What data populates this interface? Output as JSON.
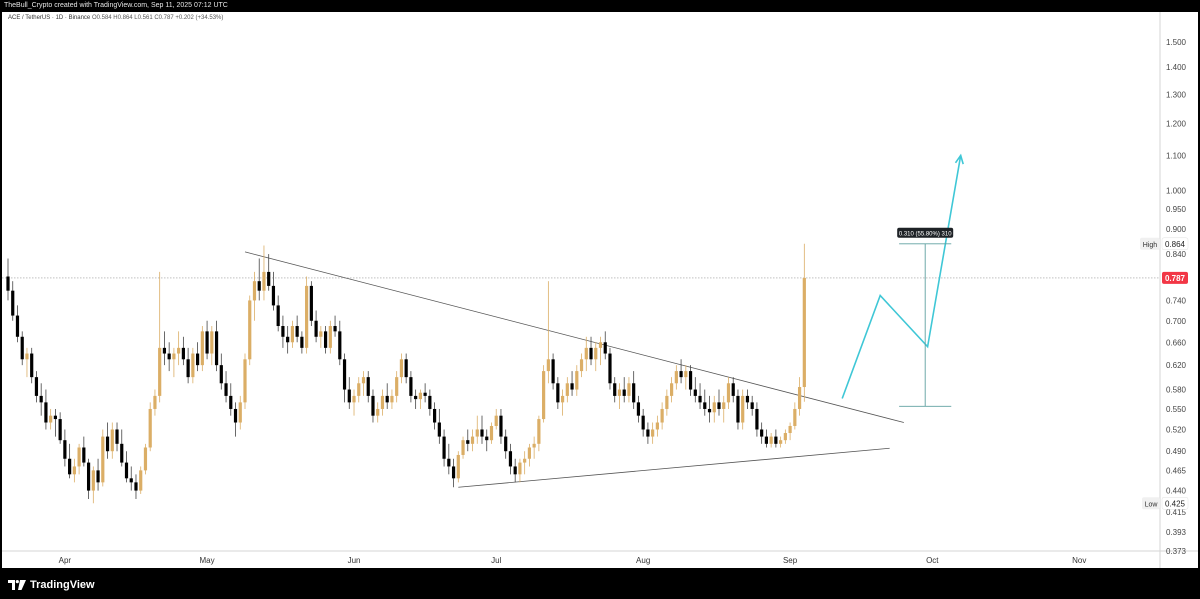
{
  "header": {
    "attribution": "TheBull_Crypto created with TradingView.com, Sep 11, 2025 07:12 UTC"
  },
  "symbol": {
    "pair": "ACE / TetherUS · 1D · Binance",
    "ohlc": "O0.584  H0.864  L0.561  C0.787  +0.202 (+34.53%)"
  },
  "footer": {
    "brand": "TradingView"
  },
  "colors": {
    "up": "#dbae66",
    "down": "#000000",
    "projection": "#3fc7d6",
    "measure": "#5fa0a0",
    "price_badge": "#f23645",
    "trendline": "#555555"
  },
  "chart_data": {
    "type": "candlestick",
    "y_scale": "log",
    "ylim": [
      0.37,
      1.6
    ],
    "y_ticks": [
      0.373,
      0.393,
      0.415,
      0.44,
      0.465,
      0.49,
      0.52,
      0.55,
      0.58,
      0.62,
      0.66,
      0.7,
      0.74,
      0.84,
      0.9,
      0.95,
      1.0,
      1.1,
      1.2,
      1.3,
      1.4,
      1.5
    ],
    "y_tick_labels": [
      "0.373",
      "0.393",
      "0.415",
      "0.440",
      "0.465",
      "0.490",
      "0.520",
      "0.550",
      "0.580",
      "0.620",
      "0.660",
      "0.700",
      "0.740",
      "0.840",
      "0.900",
      "0.950",
      "1.000",
      "1.100",
      "1.200",
      "1.300",
      "1.400",
      "1.500"
    ],
    "x_labels": [
      "Apr",
      "May",
      "Jun",
      "Jul",
      "Aug",
      "Sep",
      "Oct",
      "Nov"
    ],
    "x_label_dates": [
      "2025-04-01",
      "2025-05-01",
      "2025-06-01",
      "2025-07-01",
      "2025-08-01",
      "2025-09-01",
      "2025-10-01",
      "2025-11-01"
    ],
    "last_price": 0.787,
    "last_price_label": "0.787",
    "high": 0.864,
    "high_label": "High",
    "high_value_label": "0.864",
    "low": 0.425,
    "low_label": "Low",
    "low_value_label": "0.425",
    "measure": {
      "from": 0.554,
      "to": 0.864,
      "from_date": "2025-09-24",
      "to_date": "2025-10-05",
      "label": "0.310 (55.80%) 310"
    },
    "trendline_upper": [
      {
        "date": "2025-05-09",
        "price": 0.845
      },
      {
        "date": "2025-09-25",
        "price": 0.53
      }
    ],
    "trendline_lower": [
      {
        "date": "2025-06-23",
        "price": 0.444
      },
      {
        "date": "2025-09-22",
        "price": 0.494
      }
    ],
    "projection": [
      {
        "date": "2025-09-12",
        "price": 0.566
      },
      {
        "date": "2025-09-20",
        "price": 0.75
      },
      {
        "date": "2025-09-30",
        "price": 0.652
      },
      {
        "date": "2025-10-07",
        "price": 1.1
      }
    ],
    "candles": [
      [
        "2025-03-20",
        0.79,
        0.83,
        0.74,
        0.76
      ],
      [
        "2025-03-21",
        0.76,
        0.78,
        0.7,
        0.71
      ],
      [
        "2025-03-22",
        0.71,
        0.73,
        0.66,
        0.67
      ],
      [
        "2025-03-23",
        0.67,
        0.68,
        0.62,
        0.63
      ],
      [
        "2025-03-24",
        0.63,
        0.65,
        0.6,
        0.64
      ],
      [
        "2025-03-25",
        0.64,
        0.65,
        0.59,
        0.6
      ],
      [
        "2025-03-26",
        0.6,
        0.61,
        0.56,
        0.57
      ],
      [
        "2025-03-27",
        0.57,
        0.59,
        0.54,
        0.56
      ],
      [
        "2025-03-28",
        0.56,
        0.58,
        0.52,
        0.53
      ],
      [
        "2025-03-29",
        0.53,
        0.55,
        0.52,
        0.54
      ],
      [
        "2025-03-30",
        0.54,
        0.55,
        0.51,
        0.535
      ],
      [
        "2025-03-31",
        0.535,
        0.545,
        0.5,
        0.505
      ],
      [
        "2025-04-01",
        0.505,
        0.52,
        0.47,
        0.48
      ],
      [
        "2025-04-02",
        0.48,
        0.5,
        0.455,
        0.46
      ],
      [
        "2025-04-03",
        0.46,
        0.48,
        0.45,
        0.47
      ],
      [
        "2025-04-04",
        0.47,
        0.5,
        0.46,
        0.495
      ],
      [
        "2025-04-05",
        0.495,
        0.51,
        0.47,
        0.475
      ],
      [
        "2025-04-06",
        0.475,
        0.48,
        0.43,
        0.44
      ],
      [
        "2025-04-07",
        0.44,
        0.47,
        0.425,
        0.465
      ],
      [
        "2025-04-08",
        0.465,
        0.48,
        0.44,
        0.45
      ],
      [
        "2025-04-09",
        0.45,
        0.52,
        0.445,
        0.51
      ],
      [
        "2025-04-10",
        0.51,
        0.53,
        0.48,
        0.49
      ],
      [
        "2025-04-11",
        0.49,
        0.53,
        0.48,
        0.52
      ],
      [
        "2025-04-12",
        0.52,
        0.53,
        0.49,
        0.5
      ],
      [
        "2025-04-13",
        0.5,
        0.52,
        0.47,
        0.475
      ],
      [
        "2025-04-14",
        0.475,
        0.49,
        0.45,
        0.455
      ],
      [
        "2025-04-15",
        0.455,
        0.47,
        0.44,
        0.45
      ],
      [
        "2025-04-16",
        0.45,
        0.46,
        0.43,
        0.44
      ],
      [
        "2025-04-17",
        0.44,
        0.47,
        0.436,
        0.465
      ],
      [
        "2025-04-18",
        0.465,
        0.5,
        0.46,
        0.495
      ],
      [
        "2025-04-19",
        0.495,
        0.56,
        0.49,
        0.55
      ],
      [
        "2025-04-20",
        0.55,
        0.58,
        0.54,
        0.57
      ],
      [
        "2025-04-21",
        0.57,
        0.8,
        0.56,
        0.65
      ],
      [
        "2025-04-22",
        0.65,
        0.68,
        0.62,
        0.64
      ],
      [
        "2025-04-23",
        0.64,
        0.66,
        0.61,
        0.63
      ],
      [
        "2025-04-24",
        0.63,
        0.65,
        0.6,
        0.64
      ],
      [
        "2025-04-25",
        0.64,
        0.68,
        0.62,
        0.65
      ],
      [
        "2025-04-26",
        0.65,
        0.67,
        0.62,
        0.63
      ],
      [
        "2025-04-27",
        0.63,
        0.65,
        0.59,
        0.6
      ],
      [
        "2025-04-28",
        0.6,
        0.65,
        0.59,
        0.64
      ],
      [
        "2025-04-29",
        0.64,
        0.66,
        0.61,
        0.62
      ],
      [
        "2025-04-30",
        0.62,
        0.69,
        0.61,
        0.68
      ],
      [
        "2025-05-01",
        0.68,
        0.7,
        0.63,
        0.64
      ],
      [
        "2025-05-02",
        0.64,
        0.69,
        0.62,
        0.68
      ],
      [
        "2025-05-03",
        0.68,
        0.7,
        0.61,
        0.62
      ],
      [
        "2025-05-04",
        0.62,
        0.64,
        0.58,
        0.59
      ],
      [
        "2025-05-05",
        0.59,
        0.61,
        0.56,
        0.57
      ],
      [
        "2025-05-06",
        0.57,
        0.59,
        0.54,
        0.55
      ],
      [
        "2025-05-07",
        0.55,
        0.56,
        0.51,
        0.53
      ],
      [
        "2025-05-08",
        0.53,
        0.57,
        0.52,
        0.56
      ],
      [
        "2025-05-09",
        0.56,
        0.64,
        0.55,
        0.63
      ],
      [
        "2025-05-10",
        0.63,
        0.75,
        0.62,
        0.74
      ],
      [
        "2025-05-11",
        0.74,
        0.8,
        0.7,
        0.78
      ],
      [
        "2025-05-12",
        0.78,
        0.83,
        0.74,
        0.76
      ],
      [
        "2025-05-13",
        0.76,
        0.86,
        0.74,
        0.8
      ],
      [
        "2025-05-14",
        0.8,
        0.84,
        0.76,
        0.77
      ],
      [
        "2025-05-15",
        0.77,
        0.8,
        0.72,
        0.73
      ],
      [
        "2025-05-16",
        0.73,
        0.75,
        0.68,
        0.69
      ],
      [
        "2025-05-17",
        0.69,
        0.71,
        0.65,
        0.67
      ],
      [
        "2025-05-18",
        0.67,
        0.69,
        0.64,
        0.66
      ],
      [
        "2025-05-19",
        0.66,
        0.7,
        0.65,
        0.69
      ],
      [
        "2025-05-20",
        0.69,
        0.71,
        0.66,
        0.67
      ],
      [
        "2025-05-21",
        0.67,
        0.68,
        0.64,
        0.65
      ],
      [
        "2025-05-22",
        0.65,
        0.79,
        0.64,
        0.77
      ],
      [
        "2025-05-23",
        0.77,
        0.78,
        0.69,
        0.7
      ],
      [
        "2025-05-24",
        0.7,
        0.72,
        0.66,
        0.67
      ],
      [
        "2025-05-25",
        0.67,
        0.69,
        0.65,
        0.68
      ],
      [
        "2025-05-26",
        0.68,
        0.69,
        0.64,
        0.65
      ],
      [
        "2025-05-27",
        0.65,
        0.7,
        0.64,
        0.69
      ],
      [
        "2025-05-28",
        0.69,
        0.71,
        0.67,
        0.68
      ],
      [
        "2025-05-29",
        0.68,
        0.7,
        0.62,
        0.63
      ],
      [
        "2025-05-30",
        0.63,
        0.64,
        0.56,
        0.58
      ],
      [
        "2025-05-31",
        0.58,
        0.6,
        0.55,
        0.56
      ],
      [
        "2025-06-01",
        0.56,
        0.58,
        0.54,
        0.57
      ],
      [
        "2025-06-02",
        0.57,
        0.6,
        0.56,
        0.59
      ],
      [
        "2025-06-03",
        0.59,
        0.61,
        0.57,
        0.6
      ],
      [
        "2025-06-04",
        0.6,
        0.61,
        0.56,
        0.57
      ],
      [
        "2025-06-05",
        0.57,
        0.58,
        0.53,
        0.54
      ],
      [
        "2025-06-06",
        0.54,
        0.56,
        0.53,
        0.55
      ],
      [
        "2025-06-07",
        0.55,
        0.58,
        0.54,
        0.57
      ],
      [
        "2025-06-08",
        0.57,
        0.59,
        0.55,
        0.56
      ],
      [
        "2025-06-09",
        0.56,
        0.58,
        0.55,
        0.57
      ],
      [
        "2025-06-10",
        0.57,
        0.61,
        0.56,
        0.6
      ],
      [
        "2025-06-11",
        0.6,
        0.64,
        0.59,
        0.63
      ],
      [
        "2025-06-12",
        0.63,
        0.64,
        0.59,
        0.6
      ],
      [
        "2025-06-13",
        0.6,
        0.61,
        0.56,
        0.57
      ],
      [
        "2025-06-14",
        0.57,
        0.58,
        0.55,
        0.565
      ],
      [
        "2025-06-15",
        0.565,
        0.58,
        0.55,
        0.575
      ],
      [
        "2025-06-16",
        0.575,
        0.59,
        0.56,
        0.57
      ],
      [
        "2025-06-17",
        0.57,
        0.58,
        0.54,
        0.55
      ],
      [
        "2025-06-18",
        0.55,
        0.56,
        0.52,
        0.53
      ],
      [
        "2025-06-19",
        0.53,
        0.55,
        0.5,
        0.51
      ],
      [
        "2025-06-20",
        0.51,
        0.52,
        0.47,
        0.48
      ],
      [
        "2025-06-21",
        0.48,
        0.5,
        0.46,
        0.47
      ],
      [
        "2025-06-22",
        0.47,
        0.48,
        0.444,
        0.455
      ],
      [
        "2025-06-23",
        0.455,
        0.49,
        0.45,
        0.485
      ],
      [
        "2025-06-24",
        0.485,
        0.51,
        0.48,
        0.505
      ],
      [
        "2025-06-25",
        0.505,
        0.52,
        0.49,
        0.5
      ],
      [
        "2025-06-26",
        0.5,
        0.52,
        0.49,
        0.51
      ],
      [
        "2025-06-27",
        0.51,
        0.54,
        0.5,
        0.52
      ],
      [
        "2025-06-28",
        0.52,
        0.54,
        0.5,
        0.51
      ],
      [
        "2025-06-29",
        0.51,
        0.52,
        0.49,
        0.505
      ],
      [
        "2025-06-30",
        0.505,
        0.53,
        0.5,
        0.525
      ],
      [
        "2025-07-01",
        0.525,
        0.55,
        0.52,
        0.54
      ],
      [
        "2025-07-02",
        0.54,
        0.55,
        0.5,
        0.51
      ],
      [
        "2025-07-03",
        0.51,
        0.52,
        0.48,
        0.49
      ],
      [
        "2025-07-04",
        0.49,
        0.5,
        0.46,
        0.47
      ],
      [
        "2025-07-05",
        0.47,
        0.48,
        0.45,
        0.46
      ],
      [
        "2025-07-06",
        0.46,
        0.48,
        0.45,
        0.475
      ],
      [
        "2025-07-07",
        0.475,
        0.49,
        0.46,
        0.48
      ],
      [
        "2025-07-08",
        0.48,
        0.5,
        0.47,
        0.495
      ],
      [
        "2025-07-09",
        0.495,
        0.51,
        0.48,
        0.5
      ],
      [
        "2025-07-10",
        0.5,
        0.54,
        0.49,
        0.535
      ],
      [
        "2025-07-11",
        0.535,
        0.62,
        0.53,
        0.61
      ],
      [
        "2025-07-12",
        0.61,
        0.78,
        0.59,
        0.63
      ],
      [
        "2025-07-13",
        0.63,
        0.64,
        0.58,
        0.59
      ],
      [
        "2025-07-14",
        0.59,
        0.6,
        0.55,
        0.56
      ],
      [
        "2025-07-15",
        0.56,
        0.58,
        0.54,
        0.57
      ],
      [
        "2025-07-16",
        0.57,
        0.6,
        0.56,
        0.59
      ],
      [
        "2025-07-17",
        0.59,
        0.61,
        0.57,
        0.58
      ],
      [
        "2025-07-18",
        0.58,
        0.62,
        0.57,
        0.61
      ],
      [
        "2025-07-19",
        0.61,
        0.64,
        0.6,
        0.63
      ],
      [
        "2025-07-20",
        0.63,
        0.67,
        0.61,
        0.65
      ],
      [
        "2025-07-21",
        0.65,
        0.67,
        0.62,
        0.63
      ],
      [
        "2025-07-22",
        0.63,
        0.66,
        0.61,
        0.65
      ],
      [
        "2025-07-23",
        0.65,
        0.67,
        0.62,
        0.66
      ],
      [
        "2025-07-24",
        0.66,
        0.68,
        0.63,
        0.64
      ],
      [
        "2025-07-25",
        0.64,
        0.65,
        0.58,
        0.59
      ],
      [
        "2025-07-26",
        0.59,
        0.6,
        0.56,
        0.57
      ],
      [
        "2025-07-27",
        0.57,
        0.59,
        0.55,
        0.58
      ],
      [
        "2025-07-28",
        0.58,
        0.6,
        0.56,
        0.57
      ],
      [
        "2025-07-29",
        0.57,
        0.6,
        0.56,
        0.59
      ],
      [
        "2025-07-30",
        0.59,
        0.61,
        0.55,
        0.56
      ],
      [
        "2025-07-31",
        0.56,
        0.57,
        0.53,
        0.54
      ],
      [
        "2025-08-01",
        0.54,
        0.55,
        0.51,
        0.52
      ],
      [
        "2025-08-02",
        0.52,
        0.53,
        0.5,
        0.51
      ],
      [
        "2025-08-03",
        0.51,
        0.53,
        0.5,
        0.52
      ],
      [
        "2025-08-04",
        0.52,
        0.54,
        0.51,
        0.53
      ],
      [
        "2025-08-05",
        0.53,
        0.56,
        0.52,
        0.55
      ],
      [
        "2025-08-06",
        0.55,
        0.58,
        0.54,
        0.57
      ],
      [
        "2025-08-07",
        0.57,
        0.6,
        0.56,
        0.59
      ],
      [
        "2025-08-08",
        0.59,
        0.62,
        0.58,
        0.61
      ],
      [
        "2025-08-09",
        0.61,
        0.63,
        0.59,
        0.6
      ],
      [
        "2025-08-10",
        0.6,
        0.62,
        0.58,
        0.61
      ],
      [
        "2025-08-11",
        0.61,
        0.62,
        0.57,
        0.58
      ],
      [
        "2025-08-12",
        0.58,
        0.6,
        0.56,
        0.57
      ],
      [
        "2025-08-13",
        0.57,
        0.59,
        0.55,
        0.56
      ],
      [
        "2025-08-14",
        0.56,
        0.58,
        0.54,
        0.55
      ],
      [
        "2025-08-15",
        0.55,
        0.57,
        0.53,
        0.545
      ],
      [
        "2025-08-16",
        0.545,
        0.57,
        0.53,
        0.56
      ],
      [
        "2025-08-17",
        0.56,
        0.58,
        0.54,
        0.55
      ],
      [
        "2025-08-18",
        0.55,
        0.57,
        0.53,
        0.56
      ],
      [
        "2025-08-19",
        0.56,
        0.6,
        0.55,
        0.59
      ],
      [
        "2025-08-20",
        0.59,
        0.6,
        0.56,
        0.57
      ],
      [
        "2025-08-21",
        0.57,
        0.58,
        0.52,
        0.53
      ],
      [
        "2025-08-22",
        0.53,
        0.58,
        0.52,
        0.57
      ],
      [
        "2025-08-23",
        0.57,
        0.58,
        0.55,
        0.56
      ],
      [
        "2025-08-24",
        0.56,
        0.57,
        0.54,
        0.55
      ],
      [
        "2025-08-25",
        0.55,
        0.56,
        0.51,
        0.52
      ],
      [
        "2025-08-26",
        0.52,
        0.53,
        0.5,
        0.51
      ],
      [
        "2025-08-27",
        0.51,
        0.52,
        0.495,
        0.5
      ],
      [
        "2025-08-28",
        0.5,
        0.515,
        0.495,
        0.51
      ],
      [
        "2025-08-29",
        0.51,
        0.52,
        0.495,
        0.5
      ],
      [
        "2025-08-30",
        0.5,
        0.51,
        0.495,
        0.505
      ],
      [
        "2025-08-31",
        0.505,
        0.52,
        0.5,
        0.515
      ],
      [
        "2025-09-01",
        0.515,
        0.53,
        0.505,
        0.525
      ],
      [
        "2025-09-02",
        0.525,
        0.56,
        0.52,
        0.55
      ],
      [
        "2025-09-03",
        0.55,
        0.6,
        0.54,
        0.584
      ],
      [
        "2025-09-04",
        0.584,
        0.864,
        0.561,
        0.787
      ]
    ]
  }
}
